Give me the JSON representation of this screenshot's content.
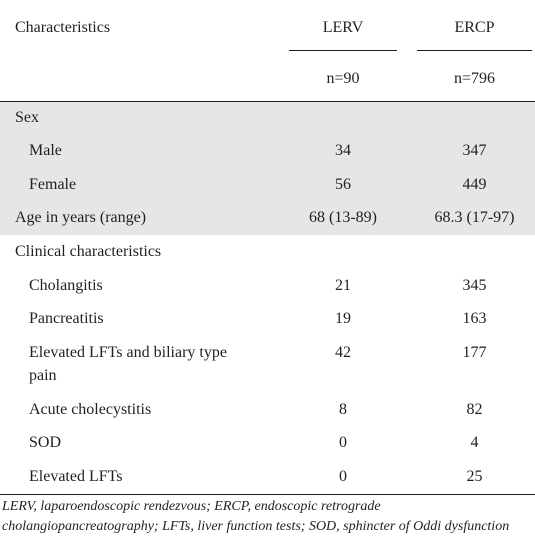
{
  "table": {
    "header": {
      "characteristics": "Characteristics",
      "col1": "LERV",
      "col2": "ERCP",
      "n1": "n=90",
      "n2": "n=796"
    },
    "rows": [
      {
        "label": "Sex",
        "v1": "",
        "v2": ""
      },
      {
        "label": "Male",
        "v1": "34",
        "v2": "347"
      },
      {
        "label": "Female",
        "v1": "56",
        "v2": "449"
      },
      {
        "label": "Age in years (range)",
        "v1": "68 (13-89)",
        "v2": "68.3 (17-97)"
      },
      {
        "label": "Clinical characteristics",
        "v1": "",
        "v2": ""
      },
      {
        "label": "Cholangitis",
        "v1": "21",
        "v2": "345"
      },
      {
        "label": "Pancreatitis",
        "v1": "19",
        "v2": "163"
      },
      {
        "label": "Elevated LFTs and biliary type",
        "label2": "pain",
        "v1": "42",
        "v2": "177"
      },
      {
        "label": "Acute cholecystitis",
        "v1": "8",
        "v2": "82"
      },
      {
        "label": "SOD",
        "v1": "0",
        "v2": "4"
      },
      {
        "label": "Elevated LFTs",
        "v1": "0",
        "v2": "25"
      }
    ]
  },
  "footnote": "LERV, laparoendoscopic rendezvous; ERCP, endoscopic retrograde cholangiopancreatography; LFTs, liver function tests; SOD, sphincter of Oddi dysfunction"
}
